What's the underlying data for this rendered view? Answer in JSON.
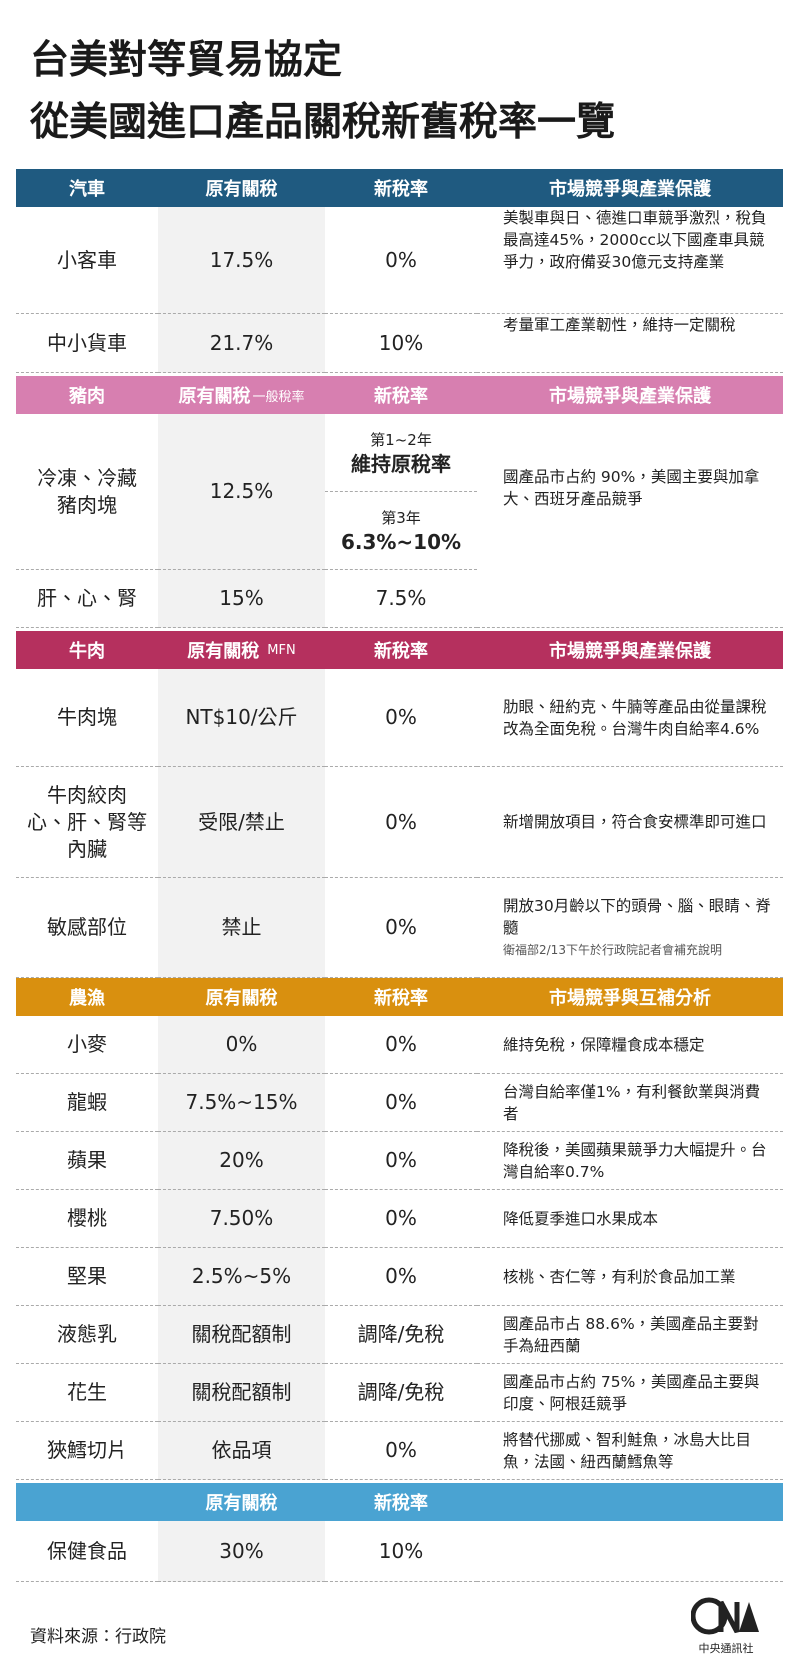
{
  "header": {
    "title": [
      "台美對等貿易協定",
      "從美國進口產品關稅新舊稅率一覽"
    ]
  },
  "sections": [
    {
      "header": [
        "汽車",
        "原有關稅",
        "新稅率",
        "市場競爭與產業保護"
      ],
      "rows": [
        [
          "小客車",
          "17.5%",
          "0%",
          "美製車與日、德進口車競爭激烈，稅負最高達45%，2000cc以下國產車具競爭力，政府備妥30億元支持產業"
        ],
        [
          "中小貨車",
          "21.7%",
          "10%",
          "考量軍工產業韌性，維持一定關稅"
        ]
      ]
    },
    {
      "header": [
        "豬肉",
        {
          "text": "原有關稅",
          "note": "一般稅率"
        },
        "新稅率",
        "市場競爭與產業保護"
      ],
      "rows": [
        [
          "冷凍、冷藏\n豬肉塊",
          "12.5%",
          [
            {
              "period": "第1~2年",
              "rate": "維持原稅率"
            },
            {
              "period": "第3年",
              "rate": "6.3%~10%"
            }
          ],
          "國產品市占約 90%，美國主要與加拿大、西班牙產品競爭"
        ],
        [
          "肝、心、腎",
          "15%",
          "7.5%"
        ]
      ]
    },
    {
      "header": [
        "牛肉",
        {
          "text": "原有關稅",
          "note": "MFN"
        },
        "新稅率",
        "市場競爭與產業保護"
      ],
      "rows": [
        [
          "牛肉塊",
          "NT$10/公斤",
          "0%",
          "肋眼、紐約克、牛腩等產品由從量課稅改為全面免稅。台灣牛肉自給率4.6%"
        ],
        [
          "牛肉絞肉\n心、肝、腎等\n內臟",
          "受限/禁止",
          "0%",
          "新增開放項目，符合食安標準即可進口"
        ],
        [
          "敏感部位",
          "禁止",
          "0%",
          {
            "text": "開放30月齡以下的頭骨、腦、眼睛、脊髓",
            "note": "衛福部2/13下午於行政院記者會補充說明"
          }
        ]
      ]
    },
    {
      "header": [
        "農漁",
        "原有關稅",
        "新稅率",
        "市場競爭與互補分析"
      ],
      "rows": [
        [
          "小麥",
          "0%",
          "0%",
          "維持免稅，保障糧食成本穩定"
        ],
        [
          "龍蝦",
          "7.5%~15%",
          "0%",
          "台灣自給率僅1%，有利餐飲業與消費者"
        ],
        [
          "蘋果",
          "20%",
          "0%",
          "降稅後，美國蘋果競爭力大幅提升。台灣自給率0.7%"
        ],
        [
          "櫻桃",
          "7.50%",
          "0%",
          "降低夏季進口水果成本"
        ],
        [
          "堅果",
          "2.5%~5%",
          "0%",
          "核桃、杏仁等，有利於食品加工業"
        ],
        [
          "液態乳",
          "關稅配額制",
          "調降/免稅",
          "國產品市占 88.6%，美國產品主要對手為紐西蘭"
        ],
        [
          "花生",
          "關稅配額制",
          "調降/免稅",
          "國產品市占約 75%，美國產品主要與印度、阿根廷競爭"
        ],
        [
          "狹鱈切片",
          "依品項",
          "0%",
          "將替代挪威、智利鮭魚，冰島大比目魚，法國、紐西蘭鱈魚等"
        ]
      ]
    },
    {
      "header": [
        "原有關稅",
        "新稅率"
      ],
      "rows": [
        [
          "保健食品",
          "30%",
          "10%"
        ]
      ]
    }
  ],
  "footer": {
    "source": "資料來源：行政院",
    "logo_text": "中央通訊社"
  }
}
